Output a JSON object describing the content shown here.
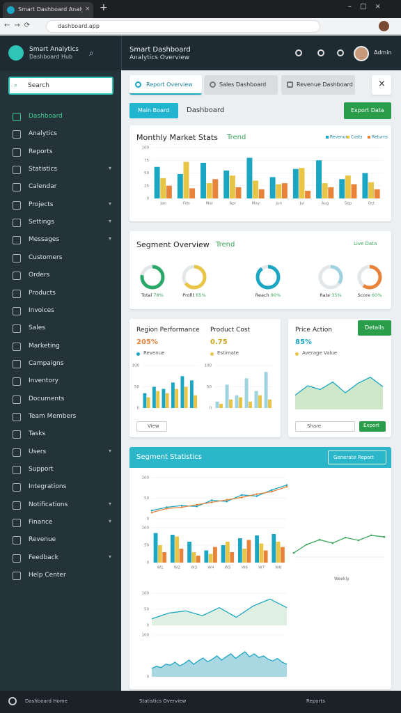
{
  "browser": {
    "tab_title": "Smart Dashboard Analytics",
    "url": "dashboard.app"
  },
  "app": {
    "brand": "Smart Analytics",
    "brand_sub": "Dashboard Hub",
    "title": "Smart Dashboard",
    "subtitle": "Analytics Overview",
    "user": "Admin"
  },
  "sidebar": {
    "search": "Search",
    "items": [
      {
        "label": "Dashboard",
        "submenu": false
      },
      {
        "label": "Analytics",
        "submenu": false
      },
      {
        "label": "Reports",
        "submenu": false
      },
      {
        "label": "Statistics",
        "submenu": true
      },
      {
        "label": "Calendar",
        "submenu": false
      },
      {
        "label": "Projects",
        "submenu": true
      },
      {
        "label": "Settings",
        "submenu": true
      },
      {
        "label": "Messages",
        "submenu": true
      },
      {
        "label": "Customers",
        "submenu": false
      },
      {
        "label": "Orders",
        "submenu": false
      },
      {
        "label": "Products",
        "submenu": false
      },
      {
        "label": "Invoices",
        "submenu": false
      },
      {
        "label": "Sales",
        "submenu": false
      },
      {
        "label": "Marketing",
        "submenu": false
      },
      {
        "label": "Campaigns",
        "submenu": false
      },
      {
        "label": "Inventory",
        "submenu": false
      },
      {
        "label": "Documents",
        "submenu": false
      },
      {
        "label": "Team Members",
        "submenu": false
      },
      {
        "label": "Tasks",
        "submenu": false
      },
      {
        "label": "Users",
        "submenu": true
      },
      {
        "label": "Support",
        "submenu": false
      },
      {
        "label": "Integrations",
        "submenu": false
      },
      {
        "label": "Notifications",
        "submenu": true
      },
      {
        "label": "Finance",
        "submenu": true
      },
      {
        "label": "Revenue",
        "submenu": false
      },
      {
        "label": "Feedback",
        "submenu": true
      },
      {
        "label": "Help Center",
        "submenu": false
      }
    ]
  },
  "tabs": [
    "Report Overview",
    "Sales Dashboard",
    "Revenue Dashboard"
  ],
  "toolbar": {
    "primary": "Main Board",
    "label": "Dashboard",
    "action": "Export Data"
  },
  "sales_card": {
    "title": "Monthly Market Stats",
    "tag": "Trend",
    "chart": {
      "type": "bar",
      "categories": [
        "Jan",
        "Feb",
        "Mar",
        "Apr",
        "May",
        "Jun",
        "Jul",
        "Aug",
        "Sep",
        "Oct"
      ],
      "series": [
        {
          "name": "Revenue",
          "color": "#1ba6c4",
          "values": [
            62,
            48,
            70,
            55,
            80,
            42,
            58,
            75,
            38,
            50
          ]
        },
        {
          "name": "Costs",
          "color": "#e8c547",
          "values": [
            40,
            72,
            30,
            45,
            35,
            28,
            60,
            30,
            45,
            32
          ]
        },
        {
          "name": "Returns",
          "color": "#e8833a",
          "values": [
            25,
            20,
            38,
            22,
            18,
            30,
            15,
            22,
            28,
            18
          ]
        }
      ],
      "ylim": [
        0,
        100
      ],
      "yticks": [
        0,
        25,
        50,
        75,
        100
      ],
      "grid": true
    }
  },
  "segment_card": {
    "title": "Segment Overview",
    "tag": "Trend",
    "legend": "Live Data",
    "chart": {
      "type": "donut",
      "items": [
        {
          "label": "Total",
          "value": 78,
          "value_label": "78%",
          "color": "#2aa86a"
        },
        {
          "label": "Profit",
          "value": 65,
          "value_label": "65%",
          "color": "#e8c547"
        },
        {
          "label": "Reach",
          "value": 90,
          "value_label": "90%",
          "color": "#1ba6c4"
        },
        {
          "label": "Rate",
          "value": 35,
          "value_label": "35%",
          "color": "#9fd3e0"
        },
        {
          "label": "Score",
          "value": 60,
          "value_label": "60%",
          "color": "#e8833a"
        }
      ]
    }
  },
  "region_card": {
    "title": "Region Performance",
    "kpi": "205%",
    "legend": "Revenue",
    "footer": "View",
    "chart": {
      "type": "bar",
      "series": [
        {
          "color": "#1ba6c4",
          "values": [
            35,
            50,
            45,
            60,
            75,
            65
          ]
        },
        {
          "color": "#e8c547",
          "values": [
            25,
            40,
            35,
            45,
            50,
            30
          ]
        }
      ],
      "ylim": [
        0,
        100
      ],
      "yticks": [
        0,
        50,
        100
      ],
      "grid": true
    }
  },
  "cost_card": {
    "title": "Product Cost",
    "kpi": "0.75",
    "legend": "Estimate",
    "chart": {
      "type": "bar",
      "series": [
        {
          "color": "#9fd3e0",
          "values": [
            15,
            55,
            30,
            70,
            40,
            85
          ]
        },
        {
          "color": "#e8c547",
          "values": [
            10,
            20,
            25,
            15,
            30,
            20
          ]
        }
      ],
      "ylim": [
        0,
        100
      ],
      "yticks": [
        0,
        50,
        100
      ],
      "grid": true
    }
  },
  "price_card": {
    "title": "Price Action",
    "kpi": "85%",
    "legend": "Average Value",
    "button": "Details",
    "footer": "Share",
    "footer_action": "Export",
    "chart": {
      "type": "line",
      "area": true,
      "series": [
        {
          "color": "#1ba6c4",
          "fill": "#cfe8c9",
          "values": [
            30,
            50,
            42,
            58,
            35,
            55,
            68,
            48
          ]
        }
      ],
      "ylim": [
        0,
        100
      ]
    }
  },
  "stats_card": {
    "title": "Segment Statistics",
    "button": "Generate Report",
    "trend": {
      "type": "line",
      "series": [
        {
          "color": "#1ba6c4",
          "values": [
            20,
            28,
            32,
            30,
            45,
            42,
            58,
            55,
            70,
            82
          ]
        },
        {
          "color": "#e8833a",
          "values": [
            15,
            25,
            28,
            34,
            40,
            46,
            52,
            60,
            66,
            78
          ]
        }
      ],
      "ylim": [
        0,
        100
      ],
      "yticks": [
        0,
        50,
        100
      ],
      "grid": true
    },
    "volume": {
      "type": "bar",
      "categories": [
        "W1",
        "W2",
        "W3",
        "W4",
        "W5",
        "W6",
        "W7",
        "W8"
      ],
      "series": [
        {
          "color": "#1ba6c4",
          "values": [
            85,
            80,
            60,
            35,
            50,
            70,
            78,
            82
          ]
        },
        {
          "color": "#e8c547",
          "values": [
            50,
            75,
            30,
            25,
            60,
            40,
            55,
            60
          ]
        },
        {
          "color": "#e8833a",
          "values": [
            30,
            40,
            20,
            45,
            30,
            65,
            35,
            45
          ]
        }
      ],
      "ylim": [
        0,
        100
      ],
      "yticks": [
        0,
        50,
        100
      ],
      "grid": true
    },
    "weekly": {
      "label": "Weekly",
      "chart": {
        "type": "line",
        "series": [
          {
            "color": "#3aa65a",
            "values": [
              15,
              45,
              62,
              50,
              70,
              60,
              78,
              72
            ]
          }
        ],
        "ylim": [
          0,
          100
        ],
        "grid": true
      }
    },
    "growth": {
      "type": "line",
      "area": true,
      "series": [
        {
          "color": "#1ba6c4",
          "fill": "#dff0e2",
          "values": [
            20,
            38,
            45,
            30,
            55,
            25,
            60,
            82,
            55
          ]
        }
      ],
      "ylim": [
        0,
        100
      ],
      "yticks": [
        0,
        50,
        100
      ],
      "grid": true
    },
    "activity": {
      "type": "line",
      "area": true,
      "series": [
        {
          "color": "#1ba6c4",
          "fill": "#a9d8e3",
          "values": [
            20,
            25,
            22,
            30,
            28,
            35,
            26,
            32,
            40,
            30,
            38,
            45,
            36,
            42,
            50,
            40,
            48,
            55,
            44,
            52,
            60,
            48,
            55,
            46,
            50,
            42,
            38,
            44,
            35,
            30
          ]
        }
      ],
      "ylim": [
        0,
        100
      ],
      "yticks": [
        0,
        100
      ],
      "grid": true
    }
  },
  "taskbar": {
    "home": "Dashboard Home",
    "center": "Statistics Overview",
    "right": "Reports"
  }
}
